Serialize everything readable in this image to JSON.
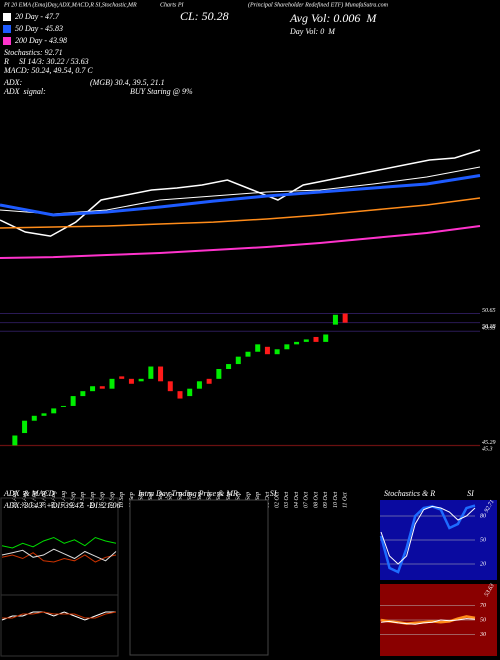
{
  "header": [
    "PI 20 EMA (Ema)Day,ADX,MACD,R SI,Stochastic,MR",
    "Charts PI",
    "(Principal Shareholder Redefined ETF) MunafaSutra.com"
  ],
  "chart_data": [
    {
      "type": "line",
      "annotations": [
        "CL: 50.28",
        "Avg Vol: 0.006  M",
        "Day Vol: 0  M",
        "Stochastics: 92.71",
        "R     SI 14/3: 30.22 / 53.63",
        "MACD: 50.24, 49.54, 0.7 C",
        "ADX:",
        "(MGB) 30.4, 39.5, 21.1",
        "ADX  signal:",
        "BUY Staring @ 9%"
      ],
      "ylim": [
        40,
        52
      ],
      "price": {
        "color": "#ffffff",
        "values": [
          44.29,
          43.26,
          42.91,
          44.11,
          46.0,
          46.43,
          46.86,
          47.03,
          47.29,
          47.71,
          46.86,
          46.0,
          47.29,
          47.71,
          48.14,
          48.57,
          49.0,
          49.43,
          49.6,
          50.29
        ]
      },
      "series": [
        {
          "name": "20 Day - 47.7",
          "color": "#ffffff",
          "values": [
            45.14,
            44.8,
            45.14,
            46.0,
            46.34,
            46.69,
            46.86,
            47.37,
            47.97,
            48.83
          ]
        },
        {
          "name": "50 Day - 45.83",
          "color": "#1e5bff",
          "values": [
            45.57,
            44.71,
            44.97,
            45.4,
            45.91,
            46.34,
            46.69,
            47.03,
            47.37,
            48.1
          ]
        },
        {
          "color": "#ff8c1a",
          "values": [
            43.6,
            43.69,
            43.77,
            43.94,
            44.11,
            44.37,
            44.71,
            45.14,
            45.57,
            46.17
          ]
        },
        {
          "name": "200 Day - 43.98",
          "color": "#ff33cc",
          "values": [
            41.03,
            41.11,
            41.29,
            41.46,
            41.71,
            41.97,
            42.31,
            42.74,
            43.17,
            43.77
          ]
        }
      ]
    },
    {
      "type": "candlestick",
      "categories": [
        "23 Aug",
        "26 Aug",
        "27 Aug",
        "28 Aug",
        "29 Aug",
        "30 Aug",
        "03 Sep",
        "04 Sep",
        "05 Sep",
        "06 Sep",
        "09 Sep",
        "10 Sep",
        "11 Sep",
        "12 Sep",
        "13 Sep",
        "16 Sep",
        "17 Sep",
        "18 Sep",
        "19 Sep",
        "20 Sep",
        "23 Sep",
        "24 Sep",
        "25 Sep",
        "26 Sep",
        "27 Sep",
        "30 Sep",
        "01 Oct",
        "02 Oct",
        "03 Oct",
        "04 Oct",
        "07 Oct",
        "08 Oct",
        "09 Oct",
        "10 Oct",
        "11 Oct"
      ],
      "open": [
        45.3,
        45.8,
        46.3,
        46.5,
        46.6,
        46.9,
        46.9,
        47.3,
        47.5,
        47.7,
        47.6,
        48.1,
        48.0,
        47.9,
        48.0,
        48.5,
        47.9,
        47.5,
        47.3,
        47.6,
        48.0,
        48.0,
        48.4,
        48.6,
        48.9,
        49.1,
        49.3,
        49.0,
        49.2,
        49.4,
        49.5,
        49.7,
        49.5,
        50.2,
        50.65
      ],
      "close": [
        45.7,
        46.3,
        46.5,
        46.6,
        46.8,
        46.9,
        47.3,
        47.5,
        47.7,
        47.6,
        48.0,
        48.0,
        47.8,
        48.0,
        48.5,
        47.9,
        47.5,
        47.2,
        47.6,
        47.9,
        47.8,
        48.4,
        48.6,
        48.9,
        49.1,
        49.4,
        49.0,
        49.2,
        49.4,
        49.5,
        49.6,
        49.5,
        49.8,
        50.6,
        50.28
      ],
      "up_color": "#00ee00",
      "down_color": "#ff1a1a",
      "ylim": [
        44.3,
        51.2
      ],
      "yticks": [
        50.65,
        50.28,
        49.93,
        45.3,
        45.29
      ]
    },
    {
      "type": "line",
      "title": "ADX  & MACD",
      "subtitle": "ADX: 30.43  +DI: 39.47  -DI: 21.06",
      "ylim": [
        0,
        60
      ],
      "series": [
        {
          "color": "#00dd00",
          "values": [
            38,
            36,
            40,
            37,
            42,
            45,
            40,
            43,
            38,
            45,
            42,
            40
          ]
        },
        {
          "color": "#cc3300",
          "values": [
            28,
            30,
            27,
            32,
            25,
            24,
            27,
            25,
            30,
            24,
            28,
            30
          ]
        },
        {
          "color": "#dddddd",
          "values": [
            30,
            32,
            34,
            28,
            30,
            35,
            31,
            27,
            33,
            29,
            25,
            33
          ]
        }
      ]
    },
    {
      "type": "line",
      "ylim": [
        0,
        1
      ],
      "series": [
        {
          "color": "#ffffff",
          "values": [
            0.5,
            0.6,
            0.6,
            0.7,
            0.7,
            0.6,
            0.7,
            0.6,
            0.5,
            0.6,
            0.7,
            0.7
          ]
        },
        {
          "color": "#cc3300",
          "values": [
            0.55,
            0.55,
            0.65,
            0.65,
            0.7,
            0.65,
            0.65,
            0.65,
            0.55,
            0.55,
            0.65,
            0.7
          ]
        }
      ]
    },
    {
      "type": "empty",
      "title": "Intra Day Trading Price & MR                SI"
    },
    {
      "type": "line",
      "title": "Stochastics & R                SI",
      "background": "#0a0aa0",
      "ylim": [
        0,
        100
      ],
      "yticks": [
        20,
        50,
        80
      ],
      "annotations": [
        "92.71"
      ],
      "series": [
        {
          "color": "#1e6bff",
          "values": [
            55,
            15,
            10,
            40,
            80,
            90,
            92,
            88,
            65,
            70,
            90,
            93
          ]
        },
        {
          "color": "#ffffff",
          "values": [
            60,
            30,
            20,
            30,
            70,
            88,
            92,
            90,
            85,
            75,
            80,
            90
          ]
        }
      ]
    },
    {
      "type": "line",
      "background": "#8a0000",
      "ylim": [
        0,
        100
      ],
      "yticks": [
        30,
        50,
        70
      ],
      "annotations": [
        "53.63"
      ],
      "series": [
        {
          "color": "#ff8c1a",
          "values": [
            50,
            48,
            47,
            45,
            46,
            47,
            48,
            47,
            48,
            52,
            55,
            53
          ]
        },
        {
          "color": "#ffffff",
          "values": [
            47,
            48,
            46,
            45,
            44,
            46,
            47,
            50,
            49,
            50,
            52,
            51
          ]
        }
      ]
    }
  ]
}
